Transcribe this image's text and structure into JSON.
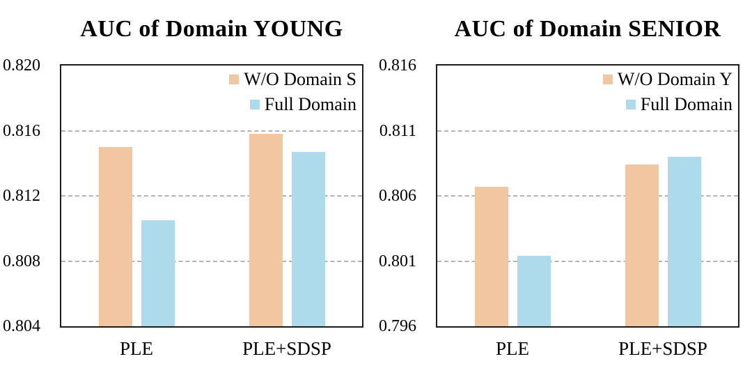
{
  "figure": {
    "background": "#ffffff",
    "axis_border_color": "#1b1b1b",
    "gridline_color": "#b3b3b3",
    "text_color": "#000000"
  },
  "chart_data": [
    {
      "type": "bar",
      "title": "AUC of Domain YOUNG",
      "categories": [
        "PLE",
        "PLE+SDSP"
      ],
      "series": [
        {
          "name": "W/O Domain S",
          "color": "#F3C6A2",
          "values": [
            0.815,
            0.8158
          ]
        },
        {
          "name": "Full Domain",
          "color": "#AEDBEB",
          "values": [
            0.8105,
            0.8147
          ]
        }
      ],
      "ylim": [
        0.804,
        0.82
      ],
      "yticks": [
        "0.804",
        "0.808",
        "0.812",
        "0.816",
        "0.820"
      ],
      "xlabel": "",
      "ylabel": "",
      "grid": "horizontal-dashed-interior-only",
      "legend_position": "top-right"
    },
    {
      "type": "bar",
      "title": "AUC of Domain SENIOR",
      "categories": [
        "PLE",
        "PLE+SDSP"
      ],
      "series": [
        {
          "name": "W/O Domain Y",
          "color": "#F3C6A2",
          "values": [
            0.8067,
            0.8084
          ]
        },
        {
          "name": "Full Domain",
          "color": "#AEDBEB",
          "values": [
            0.8014,
            0.809
          ]
        }
      ],
      "ylim": [
        0.796,
        0.816
      ],
      "yticks": [
        "0.796",
        "0.801",
        "0.806",
        "0.811",
        "0.816"
      ],
      "xlabel": "",
      "ylabel": "",
      "grid": "horizontal-dashed-interior-only",
      "legend_position": "top-right"
    }
  ]
}
